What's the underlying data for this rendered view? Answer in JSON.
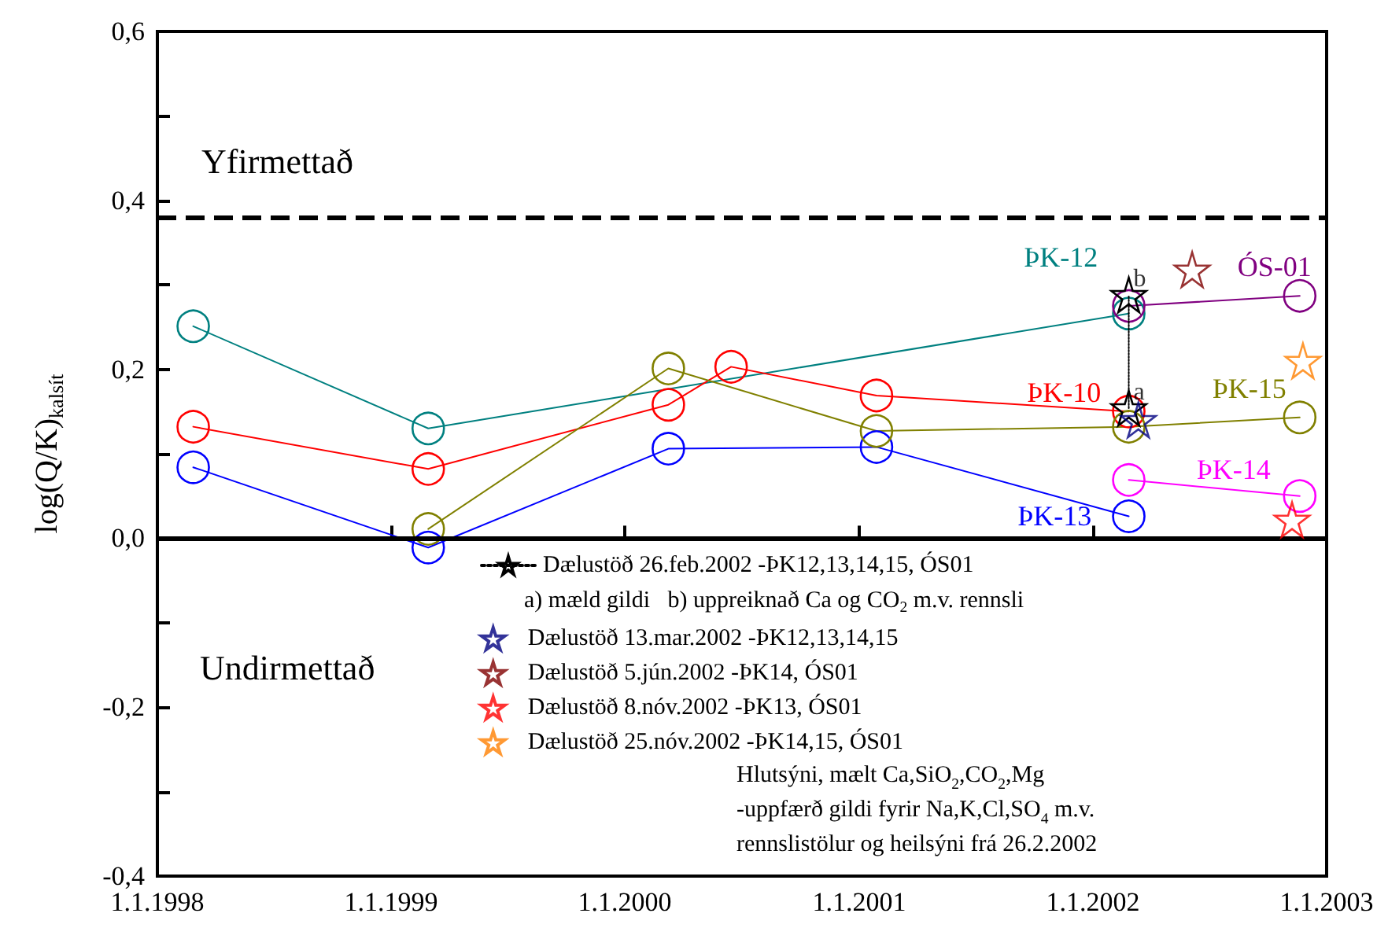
{
  "chart_data": {
    "type": "line",
    "ylabel": "log(Q/K)$_{kalsít}$",
    "xlim": [
      "1998-01-01",
      "2003-01-01"
    ],
    "xticks": [
      {
        "value": "1998-01-01",
        "label": "1.1.1998"
      },
      {
        "value": "1999-01-01",
        "label": "1.1.1999"
      },
      {
        "value": "2000-01-01",
        "label": "1.1.2000"
      },
      {
        "value": "2001-01-01",
        "label": "1.1.2001"
      },
      {
        "value": "2002-01-01",
        "label": "1.1.2002"
      },
      {
        "value": "2003-01-01",
        "label": "1.1.2003"
      }
    ],
    "ylim": [
      -0.4,
      0.6
    ],
    "yticks": [
      {
        "value": -0.4,
        "label": "-0,4"
      },
      {
        "value": -0.3,
        "label": null
      },
      {
        "value": -0.2,
        "label": "-0,2"
      },
      {
        "value": -0.1,
        "label": null
      },
      {
        "value": 0,
        "label": "0,0"
      },
      {
        "value": 0.1,
        "label": null
      },
      {
        "value": 0.2,
        "label": "0,2"
      },
      {
        "value": 0.3,
        "label": null
      },
      {
        "value": 0.4,
        "label": "0,4"
      },
      {
        "value": 0.5,
        "label": null
      },
      {
        "value": 0.6,
        "label": "0,6"
      }
    ],
    "grid": false,
    "legend": "bottom",
    "ref_lines": [
      {
        "axis": "y",
        "value": 0.38,
        "line_style": "dashed",
        "color": "#000000"
      },
      {
        "axis": "y",
        "value": 0,
        "line_style": "solid",
        "color": "#000000"
      }
    ],
    "annotations": [
      "Yfirmettað",
      "Undirmettað",
      "a) mæld gildi   b) uppreiknað Ca og CO$_{2}$ m.v. rennsli",
      "Hlutsýni, mælt Ca,SiO$_{2}$,CO$_{2}$,Mg\n-uppfærð gildi fyrir Na,K,Cl,SO$_{4}$ m.v.\nrennslistölur og heilsýni frá 26.2.2002",
      {
        "text": "a",
        "x": "2002-02-26",
        "y": 0.154
      },
      {
        "text": "b",
        "x": "2002-02-26",
        "y": 0.288
      }
    ],
    "series": [
      {
        "name": "ÞK-12",
        "type": "line",
        "marker": "circle",
        "color": "#008080",
        "x": [
          "1998-02-26",
          "1999-02-28",
          "2002-02-26"
        ],
        "values": [
          0.251,
          0.13,
          0.266
        ]
      },
      {
        "name": "ÞK-10",
        "type": "line",
        "marker": "circle",
        "color": "#ff0000",
        "x": [
          "1998-02-26",
          "1999-02-28",
          "2000-03-09",
          "2000-06-15",
          "2001-01-28",
          "2002-02-26"
        ],
        "values": [
          0.132,
          0.082,
          0.158,
          0.203,
          0.169,
          0.15
        ]
      },
      {
        "name": "ÞK-13",
        "type": "line",
        "marker": "circle",
        "color": "#0000ff",
        "x": [
          "1998-02-26",
          "1999-02-28",
          "2000-03-09",
          "2001-01-28",
          "2002-02-26"
        ],
        "values": [
          0.084,
          -0.011,
          0.106,
          0.108,
          0.026
        ]
      },
      {
        "name": "ÞK-15",
        "type": "line",
        "marker": "circle",
        "color": "#808000",
        "x": [
          "1999-02-28",
          "2000-03-09",
          "2001-01-28",
          "2002-02-26",
          "2002-11-20"
        ],
        "values": [
          0.011,
          0.201,
          0.127,
          0.132,
          0.143
        ]
      },
      {
        "name": "ÞK-14",
        "type": "line",
        "marker": "circle",
        "color": "#ff00ff",
        "x": [
          "2002-02-26",
          "2002-11-20"
        ],
        "values": [
          0.069,
          0.05
        ]
      },
      {
        "name": "ÓS-01",
        "type": "line",
        "marker": "circle",
        "color": "#800080",
        "x": [
          "2002-02-26",
          "2002-11-20"
        ],
        "values": [
          0.275,
          0.287
        ]
      },
      {
        "name": "Dælustöð 26.feb.2002 -ÞK12,13,14,15, ÓS01",
        "type": "line",
        "marker": "star",
        "line_style": "dotted",
        "color": "#000000",
        "x": [
          "2002-02-26",
          "2002-02-26"
        ],
        "values": [
          0.154,
          0.288
        ]
      },
      {
        "name": "Dælustöð 13.mar.2002 -ÞK12,13,14,15",
        "type": "scatter",
        "marker": "star",
        "color": "#000080",
        "x": [
          "2002-03-13"
        ],
        "values": [
          0.14
        ]
      },
      {
        "name": "Dælustöð 5.jún.2002 -ÞK14, ÓS01",
        "type": "scatter",
        "marker": "star",
        "color": "#800000",
        "x": [
          "2002-06-05"
        ],
        "values": [
          0.318
        ]
      },
      {
        "name": "Dælustöð 8.nóv.2002 -ÞK13, ÓS01",
        "type": "scatter",
        "marker": "star",
        "color": "#ff0000",
        "x": [
          "2002-11-08"
        ],
        "values": [
          0.022
        ]
      },
      {
        "name": "Dælustöð 25.nóv.2002 -ÞK14,15, ÓS01",
        "type": "scatter",
        "marker": "star",
        "color": "#ff8000",
        "x": [
          "2002-11-25"
        ],
        "values": [
          0.21
        ]
      }
    ]
  }
}
